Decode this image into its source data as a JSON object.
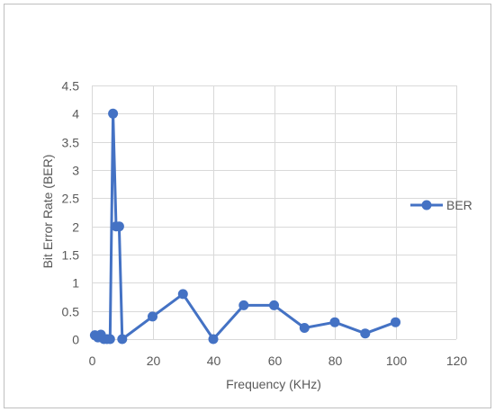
{
  "chart_data": {
    "type": "line",
    "title": "",
    "xlabel": "Frequency (KHz)",
    "ylabel": "Bit Error Rate (BER)",
    "xlim": [
      0,
      120
    ],
    "ylim": [
      0,
      4.5
    ],
    "xticks": [
      0,
      20,
      40,
      60,
      80,
      100,
      120
    ],
    "yticks": [
      0,
      0.5,
      1,
      1.5,
      2,
      2.5,
      3,
      3.5,
      4,
      4.5
    ],
    "xtick_labels": [
      "0",
      "20",
      "40",
      "60",
      "80",
      "100",
      "120"
    ],
    "ytick_labels": [
      "0",
      "0.5",
      "1",
      "1.5",
      "2",
      "2.5",
      "3",
      "3.5",
      "4",
      "4.5"
    ],
    "grid": "vertical and horizontal",
    "legend_position": "right",
    "series": [
      {
        "name": "BER",
        "color": "#4472C4",
        "x": [
          1,
          2,
          3,
          4,
          5,
          6,
          7,
          8,
          9,
          10,
          20,
          30,
          40,
          50,
          60,
          70,
          80,
          90,
          100
        ],
        "y": [
          0.07,
          0.03,
          0.08,
          0.0,
          0.0,
          0.0,
          4.0,
          2.0,
          2.0,
          0.0,
          0.4,
          0.8,
          0.0,
          0.6,
          0.6,
          0.2,
          0.3,
          0.1,
          0.3
        ]
      }
    ]
  },
  "colors": {
    "grid": "#d9d9d9",
    "frame": "#bfbfbf",
    "text": "#595959"
  }
}
